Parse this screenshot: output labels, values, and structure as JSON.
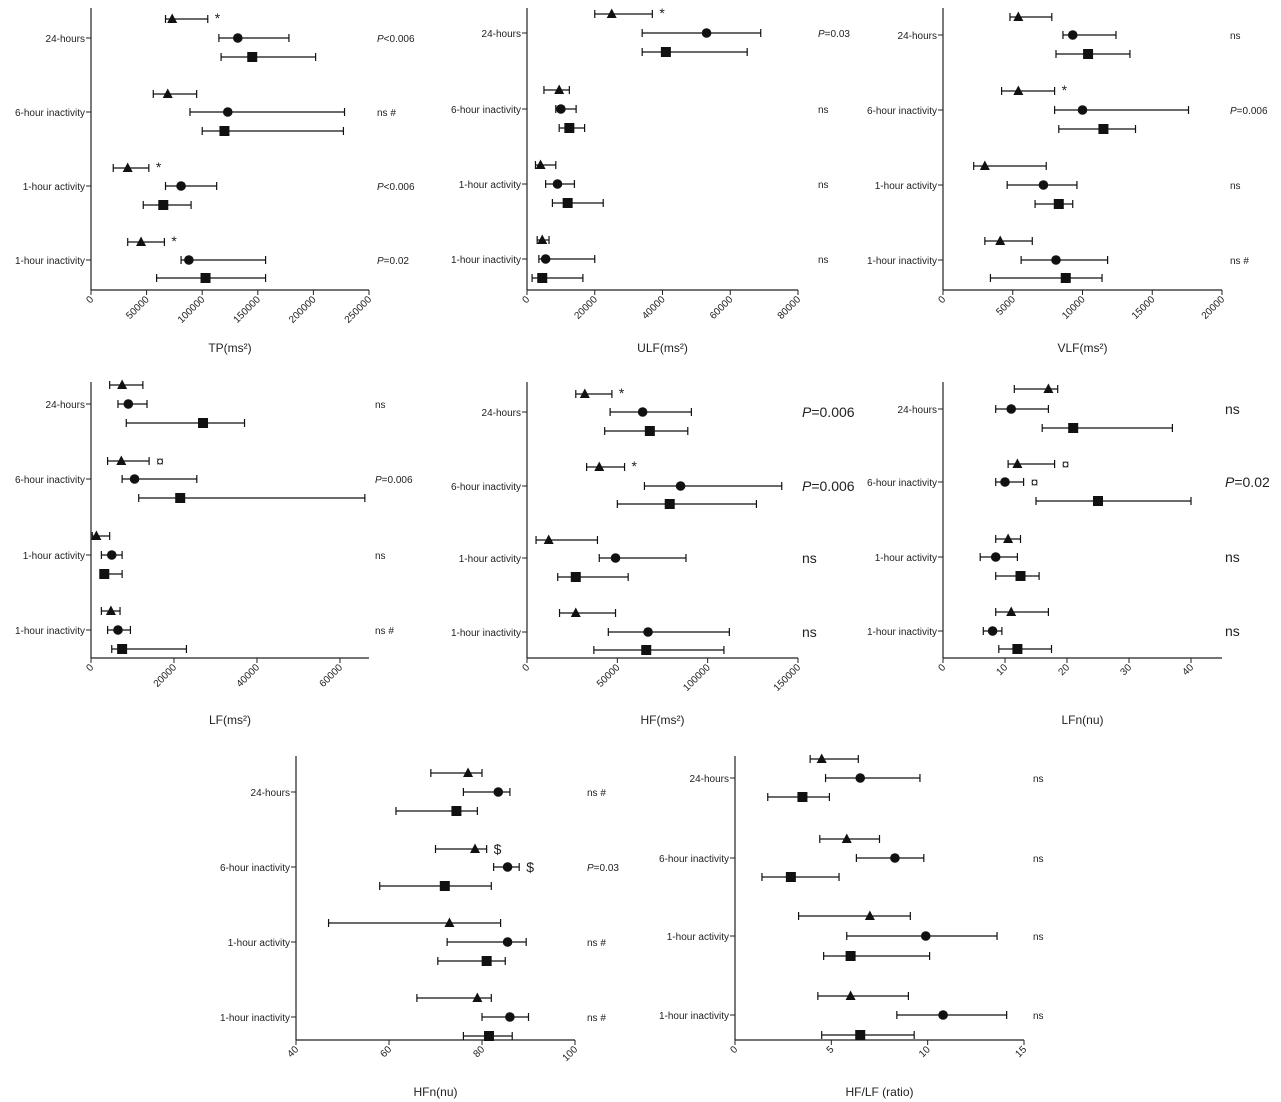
{
  "chart_data": [
    {
      "type": "forest",
      "xlabel": "TP(ms²)",
      "xlim": [
        0,
        250000
      ],
      "xticks": [
        0,
        50000,
        100000,
        150000,
        200000,
        250000
      ],
      "categories": [
        "24-hours",
        "6-hour inactivity",
        "1-hour activity",
        "1-hour inactivity"
      ],
      "series": [
        {
          "marker": "triangle",
          "values": [
            {
              "mean": 73000,
              "lo": 67000,
              "hi": 105000
            },
            {
              "mean": 69000,
              "lo": 56000,
              "hi": 95000
            },
            {
              "mean": 33000,
              "lo": 20000,
              "hi": 52000
            },
            {
              "mean": 45000,
              "lo": 33000,
              "hi": 66000
            }
          ]
        },
        {
          "marker": "circle",
          "values": [
            {
              "mean": 132000,
              "lo": 115000,
              "hi": 178000
            },
            {
              "mean": 123000,
              "lo": 89000,
              "hi": 228000
            },
            {
              "mean": 81000,
              "lo": 67000,
              "hi": 113000
            },
            {
              "mean": 88000,
              "lo": 81000,
              "hi": 157000
            }
          ]
        },
        {
          "marker": "square",
          "values": [
            {
              "mean": 145000,
              "lo": 117000,
              "hi": 202000
            },
            {
              "mean": 120000,
              "lo": 100000,
              "hi": 227000
            },
            {
              "mean": 65000,
              "lo": 47000,
              "hi": 90000
            },
            {
              "mean": 103000,
              "lo": 59000,
              "hi": 157000
            }
          ]
        }
      ],
      "marks": [
        [
          "*",
          ""
        ],
        [
          "",
          ""
        ],
        [
          "*",
          ""
        ],
        [
          "*",
          ""
        ]
      ],
      "annotations": [
        {
          "italic": "P",
          "text": "<0.006"
        },
        {
          "text": "ns #"
        },
        {
          "italic": "P",
          "text": "<0.006"
        },
        {
          "italic": "P",
          "text": "=0.02"
        }
      ]
    },
    {
      "type": "forest",
      "xlabel": "ULF(ms²)",
      "xlim": [
        0,
        80000
      ],
      "xticks": [
        0,
        20000,
        40000,
        60000,
        80000
      ],
      "categories": [
        "24-hours",
        "6-hour inactivity",
        "1-hour activity",
        "1-hour inactivity"
      ],
      "series": [
        {
          "marker": "triangle",
          "values": [
            {
              "mean": 25000,
              "lo": 20000,
              "hi": 37000
            },
            {
              "mean": 9500,
              "lo": 5000,
              "hi": 12500
            },
            {
              "mean": 4000,
              "lo": 2500,
              "hi": 8500
            },
            {
              "mean": 4500,
              "lo": 3000,
              "hi": 6500
            }
          ]
        },
        {
          "marker": "circle",
          "values": [
            {
              "mean": 53000,
              "lo": 34000,
              "hi": 69000
            },
            {
              "mean": 10000,
              "lo": 8500,
              "hi": 14500
            },
            {
              "mean": 9000,
              "lo": 5500,
              "hi": 14000
            },
            {
              "mean": 5500,
              "lo": 3500,
              "hi": 20000
            }
          ]
        },
        {
          "marker": "square",
          "values": [
            {
              "mean": 41000,
              "lo": 34000,
              "hi": 65000
            },
            {
              "mean": 12500,
              "lo": 9500,
              "hi": 17000
            },
            {
              "mean": 12000,
              "lo": 7500,
              "hi": 22500
            },
            {
              "mean": 4500,
              "lo": 1500,
              "hi": 16500
            }
          ]
        }
      ],
      "marks": [
        [
          "*",
          ""
        ],
        [
          "",
          ""
        ],
        [
          "",
          ""
        ],
        [
          "",
          ""
        ]
      ],
      "annotations": [
        {
          "italic": "P",
          "text": "=0.03"
        },
        {
          "text": "ns"
        },
        {
          "text": "ns"
        },
        {
          "text": "ns"
        }
      ]
    },
    {
      "type": "forest",
      "xlabel": "VLF(ms²)",
      "xlim": [
        0,
        20000
      ],
      "xticks": [
        0,
        5000,
        10000,
        15000,
        20000
      ],
      "categories": [
        "24-hours",
        "6-hour inactivity",
        "1-hour activity",
        "1-hour inactivity"
      ],
      "series": [
        {
          "marker": "triangle",
          "values": [
            {
              "mean": 5400,
              "lo": 4800,
              "hi": 7800
            },
            {
              "mean": 5400,
              "lo": 4200,
              "hi": 8000
            },
            {
              "mean": 3000,
              "lo": 2200,
              "hi": 7400
            },
            {
              "mean": 4100,
              "lo": 3000,
              "hi": 6400
            }
          ]
        },
        {
          "marker": "circle",
          "values": [
            {
              "mean": 9300,
              "lo": 8600,
              "hi": 12400
            },
            {
              "mean": 10000,
              "lo": 8000,
              "hi": 17600
            },
            {
              "mean": 7200,
              "lo": 4600,
              "hi": 9600
            },
            {
              "mean": 8100,
              "lo": 5600,
              "hi": 11800
            }
          ]
        },
        {
          "marker": "square",
          "values": [
            {
              "mean": 10400,
              "lo": 8100,
              "hi": 13400
            },
            {
              "mean": 11500,
              "lo": 8300,
              "hi": 13800
            },
            {
              "mean": 8300,
              "lo": 6600,
              "hi": 9300
            },
            {
              "mean": 8800,
              "lo": 3400,
              "hi": 11400
            }
          ]
        }
      ],
      "marks": [
        [
          "",
          ""
        ],
        [
          "*",
          ""
        ],
        [
          "",
          ""
        ],
        [
          "",
          ""
        ]
      ],
      "annotations": [
        {
          "text": "ns"
        },
        {
          "italic": "P",
          "text": "=0.006"
        },
        {
          "text": "ns"
        },
        {
          "text": "ns #"
        }
      ]
    },
    {
      "type": "forest",
      "xlabel": "LF(ms²)",
      "xlim": [
        0,
        67000
      ],
      "xticks": [
        0,
        20000,
        40000,
        60000
      ],
      "categories": [
        "24-hours",
        "6-hour inactivity",
        "1-hour activity",
        "1-hour inactivity"
      ],
      "series": [
        {
          "marker": "triangle",
          "values": [
            {
              "mean": 7500,
              "lo": 4500,
              "hi": 12500
            },
            {
              "mean": 7300,
              "lo": 4000,
              "hi": 14000
            },
            {
              "mean": 1300,
              "lo": 300,
              "hi": 4500
            },
            {
              "mean": 4800,
              "lo": 2500,
              "hi": 7000
            }
          ]
        },
        {
          "marker": "circle",
          "values": [
            {
              "mean": 9000,
              "lo": 6500,
              "hi": 13500
            },
            {
              "mean": 10500,
              "lo": 7500,
              "hi": 25500
            },
            {
              "mean": 5000,
              "lo": 2500,
              "hi": 7500
            },
            {
              "mean": 6500,
              "lo": 4000,
              "hi": 9500
            }
          ]
        },
        {
          "marker": "square",
          "values": [
            {
              "mean": 27000,
              "lo": 8500,
              "hi": 37000
            },
            {
              "mean": 21500,
              "lo": 11500,
              "hi": 66000
            },
            {
              "mean": 3200,
              "lo": 2500,
              "hi": 7500
            },
            {
              "mean": 7500,
              "lo": 5000,
              "hi": 23000
            }
          ]
        }
      ],
      "marks": [
        [
          "",
          ""
        ],
        [
          "¤",
          ""
        ],
        [
          "",
          ""
        ],
        [
          "",
          ""
        ]
      ],
      "annotations": [
        {
          "text": "ns"
        },
        {
          "italic": "P",
          "text": "=0.006"
        },
        {
          "text": "ns"
        },
        {
          "text": "ns #"
        }
      ]
    },
    {
      "type": "forest",
      "xlabel": "HF(ms²)",
      "xlim": [
        0,
        150000
      ],
      "xticks": [
        0,
        50000,
        100000,
        150000
      ],
      "categories": [
        "24-hours",
        "6-hour inactivity",
        "1-hour activity",
        "1-hour inactivity"
      ],
      "series": [
        {
          "marker": "triangle",
          "values": [
            {
              "mean": 32000,
              "lo": 27000,
              "hi": 47000
            },
            {
              "mean": 40000,
              "lo": 33000,
              "hi": 54000
            },
            {
              "mean": 12000,
              "lo": 5000,
              "hi": 39000
            },
            {
              "mean": 27000,
              "lo": 18000,
              "hi": 49000
            }
          ]
        },
        {
          "marker": "circle",
          "values": [
            {
              "mean": 64000,
              "lo": 46000,
              "hi": 91000
            },
            {
              "mean": 85000,
              "lo": 65000,
              "hi": 141000
            },
            {
              "mean": 49000,
              "lo": 40000,
              "hi": 88000
            },
            {
              "mean": 67000,
              "lo": 45000,
              "hi": 112000
            }
          ]
        },
        {
          "marker": "square",
          "values": [
            {
              "mean": 68000,
              "lo": 43000,
              "hi": 89000
            },
            {
              "mean": 79000,
              "lo": 50000,
              "hi": 127000
            },
            {
              "mean": 27000,
              "lo": 17000,
              "hi": 56000
            },
            {
              "mean": 66000,
              "lo": 37000,
              "hi": 109000
            }
          ]
        }
      ],
      "marks": [
        [
          "*",
          ""
        ],
        [
          "*",
          ""
        ],
        [
          "",
          ""
        ],
        [
          "",
          ""
        ]
      ],
      "annotations": [
        {
          "italic": "P",
          "text": "=0.006",
          "big": true
        },
        {
          "italic": "P",
          "text": "=0.006",
          "big": true
        },
        {
          "text": "ns",
          "big": true
        },
        {
          "text": "ns",
          "big": true
        }
      ]
    },
    {
      "type": "forest",
      "xlabel": "LFn(nu)",
      "xlim": [
        0,
        45
      ],
      "xticks": [
        0,
        10,
        20,
        30,
        40
      ],
      "categories": [
        "24-hours",
        "6-hour inactivity",
        "1-hour activity",
        "1-hour inactivity"
      ],
      "series": [
        {
          "marker": "triangle",
          "values": [
            {
              "mean": 17,
              "lo": 11.5,
              "hi": 18.5
            },
            {
              "mean": 12,
              "lo": 10.5,
              "hi": 18
            },
            {
              "mean": 10.5,
              "lo": 8.5,
              "hi": 12.5
            },
            {
              "mean": 11,
              "lo": 8.5,
              "hi": 17
            }
          ]
        },
        {
          "marker": "circle",
          "values": [
            {
              "mean": 11,
              "lo": 8.5,
              "hi": 17
            },
            {
              "mean": 10,
              "lo": 8.5,
              "hi": 13
            },
            {
              "mean": 8.5,
              "lo": 6,
              "hi": 12
            },
            {
              "mean": 8,
              "lo": 6.5,
              "hi": 9.5
            }
          ]
        },
        {
          "marker": "square",
          "values": [
            {
              "mean": 21,
              "lo": 16,
              "hi": 37
            },
            {
              "mean": 25,
              "lo": 15,
              "hi": 40
            },
            {
              "mean": 12.5,
              "lo": 8.5,
              "hi": 15.5
            },
            {
              "mean": 12,
              "lo": 9,
              "hi": 17.5
            }
          ]
        }
      ],
      "marks": [
        [
          "",
          ""
        ],
        [
          "¤",
          "¤"
        ],
        [
          "",
          ""
        ],
        [
          "",
          ""
        ]
      ],
      "annotations": [
        {
          "text": "ns",
          "big": true
        },
        {
          "italic": "P",
          "text": "=0.02",
          "big": true
        },
        {
          "text": "ns",
          "big": true
        },
        {
          "text": "ns",
          "big": true
        }
      ]
    },
    {
      "type": "forest",
      "xlabel": "HFn(nu)",
      "xlim": [
        40,
        100
      ],
      "xticks": [
        40,
        60,
        80,
        100
      ],
      "categories": [
        "24-hours",
        "6-hour inactivity",
        "1-hour activity",
        "1-hour inactivity"
      ],
      "series": [
        {
          "marker": "triangle",
          "values": [
            {
              "mean": 77,
              "lo": 69,
              "hi": 80
            },
            {
              "mean": 78.5,
              "lo": 70,
              "hi": 81
            },
            {
              "mean": 73,
              "lo": 47,
              "hi": 84
            },
            {
              "mean": 79,
              "lo": 66,
              "hi": 82
            }
          ]
        },
        {
          "marker": "circle",
          "values": [
            {
              "mean": 83.5,
              "lo": 76,
              "hi": 86
            },
            {
              "mean": 85.5,
              "lo": 82.5,
              "hi": 88
            },
            {
              "mean": 85.5,
              "lo": 72.5,
              "hi": 89.5
            },
            {
              "mean": 86,
              "lo": 80,
              "hi": 90
            }
          ]
        },
        {
          "marker": "square",
          "values": [
            {
              "mean": 74.5,
              "lo": 61.5,
              "hi": 79
            },
            {
              "mean": 72,
              "lo": 58,
              "hi": 82
            },
            {
              "mean": 81,
              "lo": 70.5,
              "hi": 85
            },
            {
              "mean": 81.5,
              "lo": 76,
              "hi": 86.5
            }
          ]
        }
      ],
      "marks": [
        [
          "",
          ""
        ],
        [
          "$",
          "$"
        ],
        [
          "",
          ""
        ],
        [
          "",
          ""
        ]
      ],
      "annotations": [
        {
          "text": "ns #"
        },
        {
          "italic": "P",
          "text": "=0.03"
        },
        {
          "text": "ns #"
        },
        {
          "text": "ns #"
        }
      ]
    },
    {
      "type": "forest",
      "xlabel": "HF/LF (ratio)",
      "xlim": [
        0,
        15
      ],
      "xticks": [
        0,
        5,
        10,
        15
      ],
      "categories": [
        "24-hours",
        "6-hour inactivity",
        "1-hour activity",
        "1-hour inactivity"
      ],
      "series": [
        {
          "marker": "triangle",
          "values": [
            {
              "mean": 4.5,
              "lo": 3.9,
              "hi": 6.4
            },
            {
              "mean": 5.8,
              "lo": 4.4,
              "hi": 7.5
            },
            {
              "mean": 7,
              "lo": 3.3,
              "hi": 9.1
            },
            {
              "mean": 6,
              "lo": 4.3,
              "hi": 9
            }
          ]
        },
        {
          "marker": "circle",
          "values": [
            {
              "mean": 6.5,
              "lo": 4.7,
              "hi": 9.6
            },
            {
              "mean": 8.3,
              "lo": 6.3,
              "hi": 9.8
            },
            {
              "mean": 9.9,
              "lo": 5.8,
              "hi": 13.6
            },
            {
              "mean": 10.8,
              "lo": 8.4,
              "hi": 14.1
            }
          ]
        },
        {
          "marker": "square",
          "values": [
            {
              "mean": 3.5,
              "lo": 1.7,
              "hi": 4.9
            },
            {
              "mean": 2.9,
              "lo": 1.4,
              "hi": 5.4
            },
            {
              "mean": 6,
              "lo": 4.6,
              "hi": 10.1
            },
            {
              "mean": 6.5,
              "lo": 4.5,
              "hi": 9.3
            }
          ]
        }
      ],
      "marks": [
        [
          "",
          ""
        ],
        [
          "",
          ""
        ],
        [
          "",
          ""
        ],
        [
          "",
          ""
        ]
      ],
      "annotations": [
        {
          "text": "ns"
        },
        {
          "text": "ns"
        },
        {
          "text": "ns"
        },
        {
          "text": "ns"
        }
      ]
    }
  ]
}
